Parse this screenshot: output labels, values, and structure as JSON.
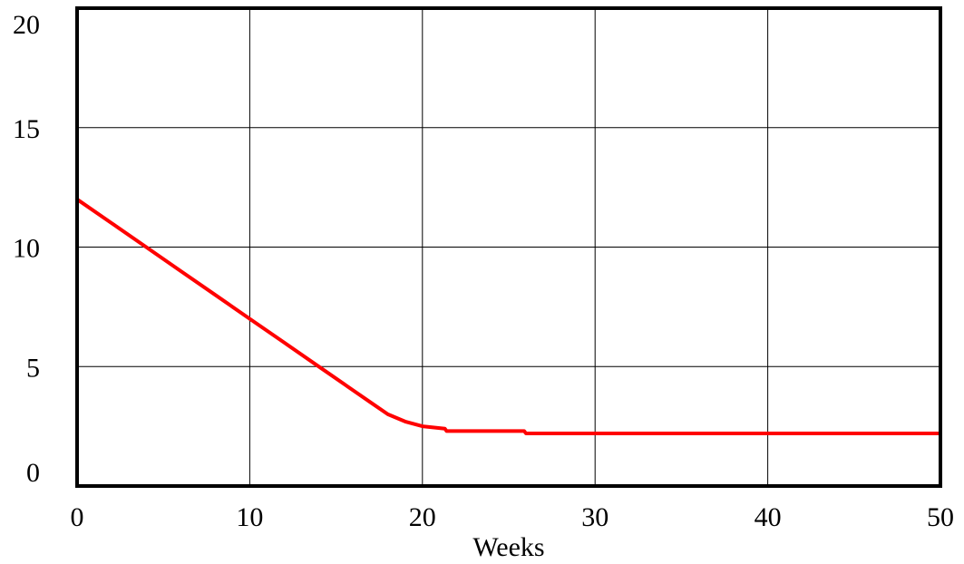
{
  "chart_data": {
    "type": "line",
    "xlabel": "Weeks",
    "ylabel": "",
    "xlim": [
      0,
      50
    ],
    "ylim": [
      0,
      20
    ],
    "x_ticks": [
      "0",
      "10",
      "20",
      "30",
      "40",
      "50"
    ],
    "y_ticks": [
      "0",
      "5",
      "10",
      "15",
      "20"
    ],
    "grid": true,
    "series": [
      {
        "color": "#ff0000",
        "points": [
          [
            0,
            12.0
          ],
          [
            2,
            11.0
          ],
          [
            4,
            10.0
          ],
          [
            6,
            9.0
          ],
          [
            8,
            8.0
          ],
          [
            10,
            7.0
          ],
          [
            12,
            6.0
          ],
          [
            14,
            5.0
          ],
          [
            16,
            4.0
          ],
          [
            17,
            3.5
          ],
          [
            18,
            3.0
          ],
          [
            19,
            2.7
          ],
          [
            20,
            2.5
          ],
          [
            21.3,
            2.4
          ],
          [
            21.4,
            2.3
          ],
          [
            25.9,
            2.3
          ],
          [
            26,
            2.2
          ],
          [
            30,
            2.2
          ],
          [
            35,
            2.2
          ],
          [
            40,
            2.2
          ],
          [
            45,
            2.2
          ],
          [
            50,
            2.2
          ]
        ]
      }
    ]
  }
}
